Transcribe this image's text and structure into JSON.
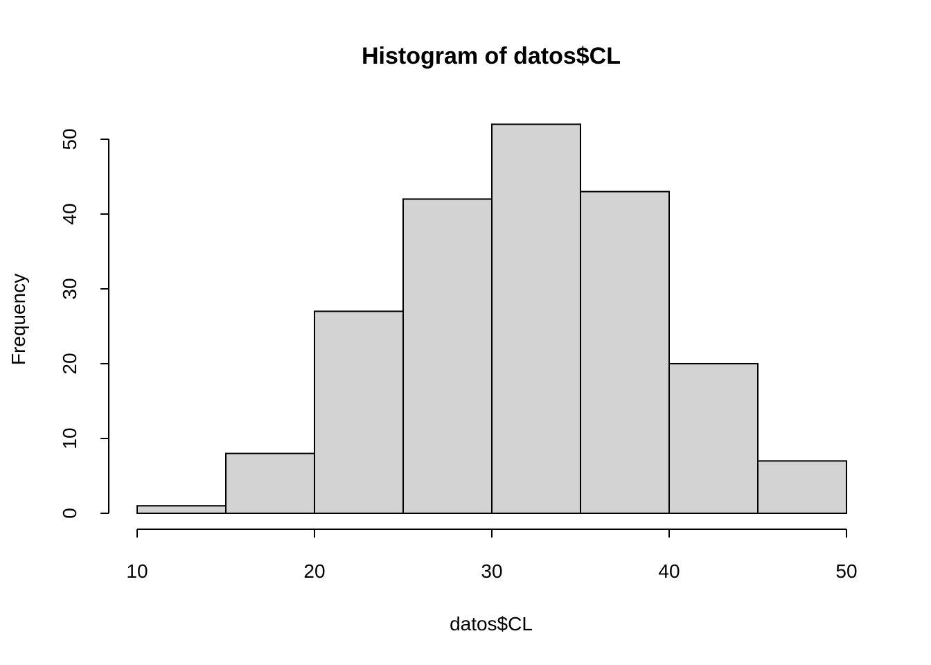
{
  "chart_data": {
    "type": "bar",
    "title": "Histogram of datos$CL",
    "xlabel": "datos$CL",
    "ylabel": "Frequency",
    "bins": [
      {
        "x0": 10,
        "x1": 15,
        "value": 1
      },
      {
        "x0": 15,
        "x1": 20,
        "value": 8
      },
      {
        "x0": 20,
        "x1": 25,
        "value": 27
      },
      {
        "x0": 25,
        "x1": 30,
        "value": 42
      },
      {
        "x0": 30,
        "x1": 35,
        "value": 52
      },
      {
        "x0": 35,
        "x1": 40,
        "value": 43
      },
      {
        "x0": 40,
        "x1": 45,
        "value": 20
      },
      {
        "x0": 45,
        "x1": 50,
        "value": 7
      }
    ],
    "x_ticks": [
      "10",
      "20",
      "30",
      "40",
      "50"
    ],
    "y_ticks": [
      "0",
      "10",
      "20",
      "30",
      "40",
      "50"
    ],
    "xlim": [
      10,
      50
    ],
    "ylim": [
      0,
      52
    ],
    "grid": false,
    "legend": "none",
    "bar_color": "#d3d3d3",
    "edge_color": "#000000"
  }
}
